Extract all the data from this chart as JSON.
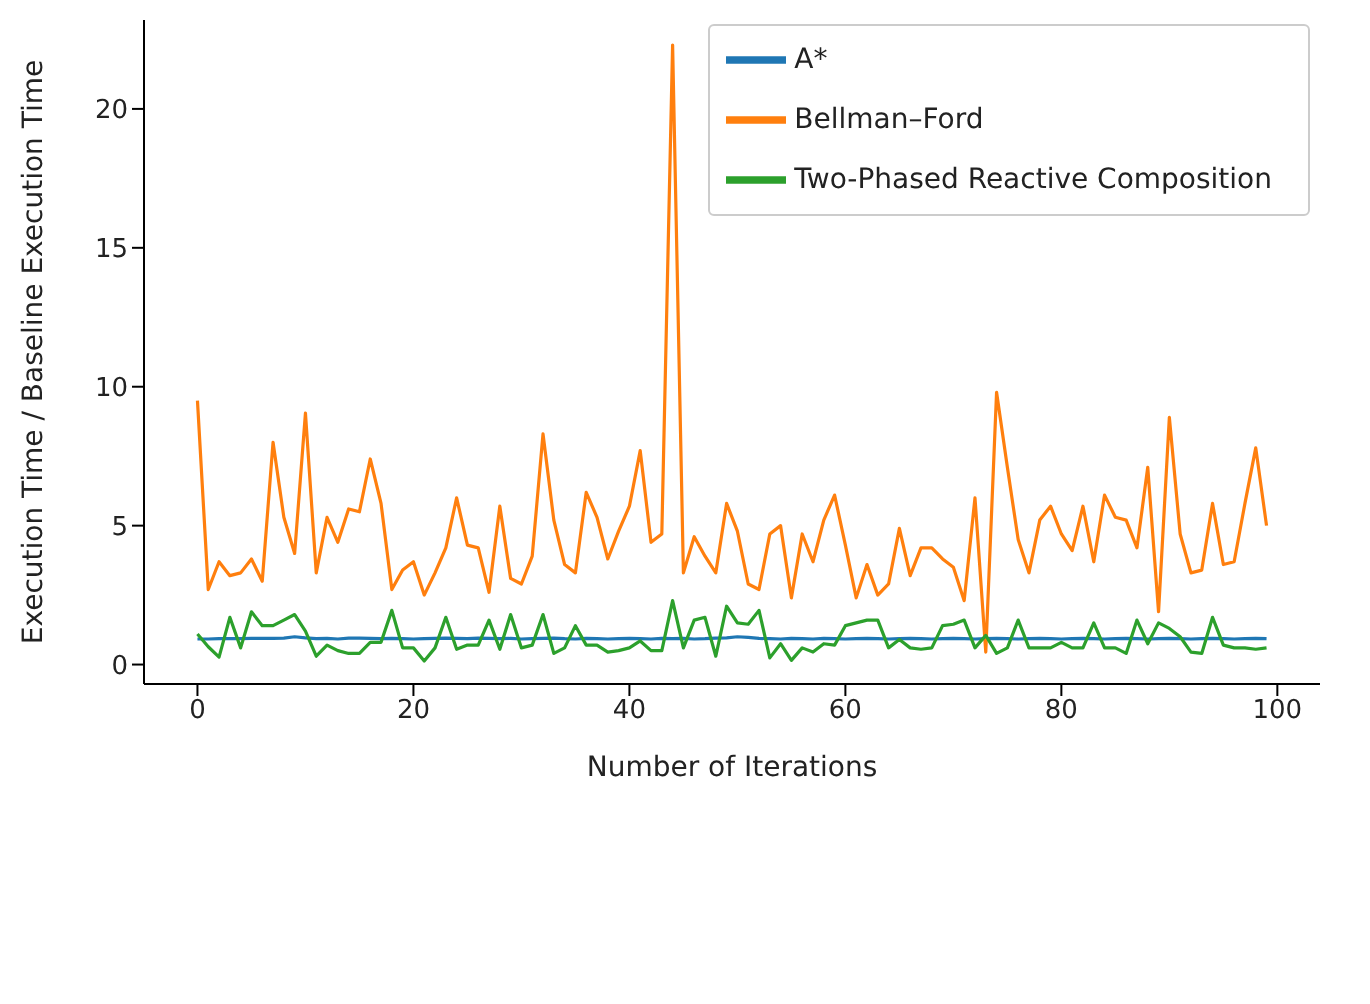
{
  "chart_data": {
    "type": "line",
    "xlabel": "Number of Iterations",
    "ylabel": "Execution Time / Baseline Execution Time",
    "x": [
      0,
      1,
      2,
      3,
      4,
      5,
      6,
      7,
      8,
      9,
      10,
      11,
      12,
      13,
      14,
      15,
      16,
      17,
      18,
      19,
      20,
      21,
      22,
      23,
      24,
      25,
      26,
      27,
      28,
      29,
      30,
      31,
      32,
      33,
      34,
      35,
      36,
      37,
      38,
      39,
      40,
      41,
      42,
      43,
      44,
      45,
      46,
      47,
      48,
      49,
      50,
      51,
      52,
      53,
      54,
      55,
      56,
      57,
      58,
      59,
      60,
      61,
      62,
      63,
      64,
      65,
      66,
      67,
      68,
      69,
      70,
      71,
      72,
      73,
      74,
      75,
      76,
      77,
      78,
      79,
      80,
      81,
      82,
      83,
      84,
      85,
      86,
      87,
      88,
      89,
      90,
      91,
      92,
      93,
      94,
      95,
      96,
      97,
      98,
      99
    ],
    "series": [
      {
        "name": "A*",
        "color": "#1f77b4",
        "values": [
          0.92,
          0.92,
          0.93,
          0.93,
          0.93,
          0.94,
          0.94,
          0.94,
          0.95,
          1.0,
          0.96,
          0.93,
          0.94,
          0.92,
          0.95,
          0.95,
          0.94,
          0.93,
          0.94,
          0.93,
          0.92,
          0.93,
          0.94,
          0.95,
          0.94,
          0.93,
          0.95,
          0.94,
          0.93,
          0.94,
          0.92,
          0.93,
          0.94,
          0.95,
          0.93,
          0.92,
          0.94,
          0.93,
          0.92,
          0.93,
          0.94,
          0.93,
          0.92,
          0.94,
          0.93,
          0.94,
          0.92,
          0.93,
          0.95,
          0.96,
          1.0,
          0.98,
          0.94,
          0.93,
          0.92,
          0.94,
          0.93,
          0.92,
          0.94,
          0.93,
          0.92,
          0.93,
          0.94,
          0.93,
          0.92,
          0.93,
          0.94,
          0.93,
          0.92,
          0.93,
          0.94,
          0.93,
          0.92,
          0.93,
          0.94,
          0.93,
          0.92,
          0.93,
          0.94,
          0.93,
          0.92,
          0.93,
          0.94,
          0.93,
          0.92,
          0.93,
          0.94,
          0.93,
          0.92,
          0.93,
          0.94,
          0.93,
          0.92,
          0.93,
          0.94,
          0.93,
          0.92,
          0.93,
          0.94,
          0.93
        ]
      },
      {
        "name": "Bellman–Ford",
        "color": "#ff7f0e",
        "values": [
          9.5,
          2.7,
          3.7,
          3.2,
          3.3,
          3.8,
          3.0,
          8.0,
          5.3,
          4.0,
          9.05,
          3.3,
          5.3,
          4.4,
          5.6,
          5.5,
          7.4,
          5.8,
          2.7,
          3.4,
          3.7,
          2.5,
          3.3,
          4.2,
          6.0,
          4.3,
          4.2,
          2.6,
          5.7,
          3.1,
          2.9,
          3.9,
          8.3,
          5.2,
          3.6,
          3.3,
          6.2,
          5.3,
          3.8,
          4.8,
          5.7,
          7.7,
          4.4,
          4.7,
          22.3,
          3.3,
          4.6,
          3.9,
          3.3,
          5.8,
          4.8,
          2.9,
          2.7,
          4.7,
          5.0,
          2.4,
          4.7,
          3.7,
          5.2,
          6.1,
          4.3,
          2.4,
          3.6,
          2.5,
          2.9,
          4.9,
          3.2,
          4.2,
          4.2,
          3.8,
          3.5,
          2.3,
          6.0,
          0.45,
          9.8,
          7.1,
          4.5,
          3.3,
          5.2,
          5.7,
          4.7,
          4.1,
          5.7,
          3.7,
          6.1,
          5.3,
          5.2,
          4.2,
          7.1,
          1.9,
          8.9,
          4.7,
          3.3,
          3.4,
          5.8,
          3.6,
          3.7,
          5.8,
          7.8,
          5.0
        ]
      },
      {
        "name": "Two-Phased Reactive Composition",
        "color": "#2ca02c",
        "values": [
          1.1,
          0.64,
          0.27,
          1.7,
          0.6,
          1.9,
          1.4,
          1.4,
          1.6,
          1.8,
          1.2,
          0.3,
          0.7,
          0.5,
          0.4,
          0.4,
          0.8,
          0.8,
          1.95,
          0.6,
          0.6,
          0.13,
          0.6,
          1.7,
          0.55,
          0.7,
          0.7,
          1.6,
          0.55,
          1.8,
          0.6,
          0.7,
          1.8,
          0.4,
          0.6,
          1.4,
          0.7,
          0.7,
          0.45,
          0.5,
          0.6,
          0.85,
          0.5,
          0.5,
          2.3,
          0.6,
          1.6,
          1.7,
          0.3,
          2.1,
          1.5,
          1.45,
          1.95,
          0.24,
          0.75,
          0.15,
          0.6,
          0.45,
          0.75,
          0.7,
          1.4,
          1.5,
          1.6,
          1.6,
          0.6,
          0.9,
          0.6,
          0.55,
          0.6,
          1.4,
          1.45,
          1.6,
          0.6,
          1.05,
          0.4,
          0.6,
          1.6,
          0.6,
          0.6,
          0.6,
          0.8,
          0.6,
          0.6,
          1.5,
          0.6,
          0.6,
          0.4,
          1.6,
          0.75,
          1.5,
          1.3,
          1.0,
          0.45,
          0.4,
          1.7,
          0.7,
          0.6,
          0.6,
          0.55,
          0.6
        ]
      }
    ],
    "xlim": [
      -4.95,
      103.95
    ],
    "ylim": [
      -0.7,
      23.2
    ],
    "xticks": [
      0,
      20,
      40,
      60,
      80,
      100
    ],
    "yticks": [
      0,
      5,
      10,
      15,
      20
    ],
    "legend": "top right"
  }
}
